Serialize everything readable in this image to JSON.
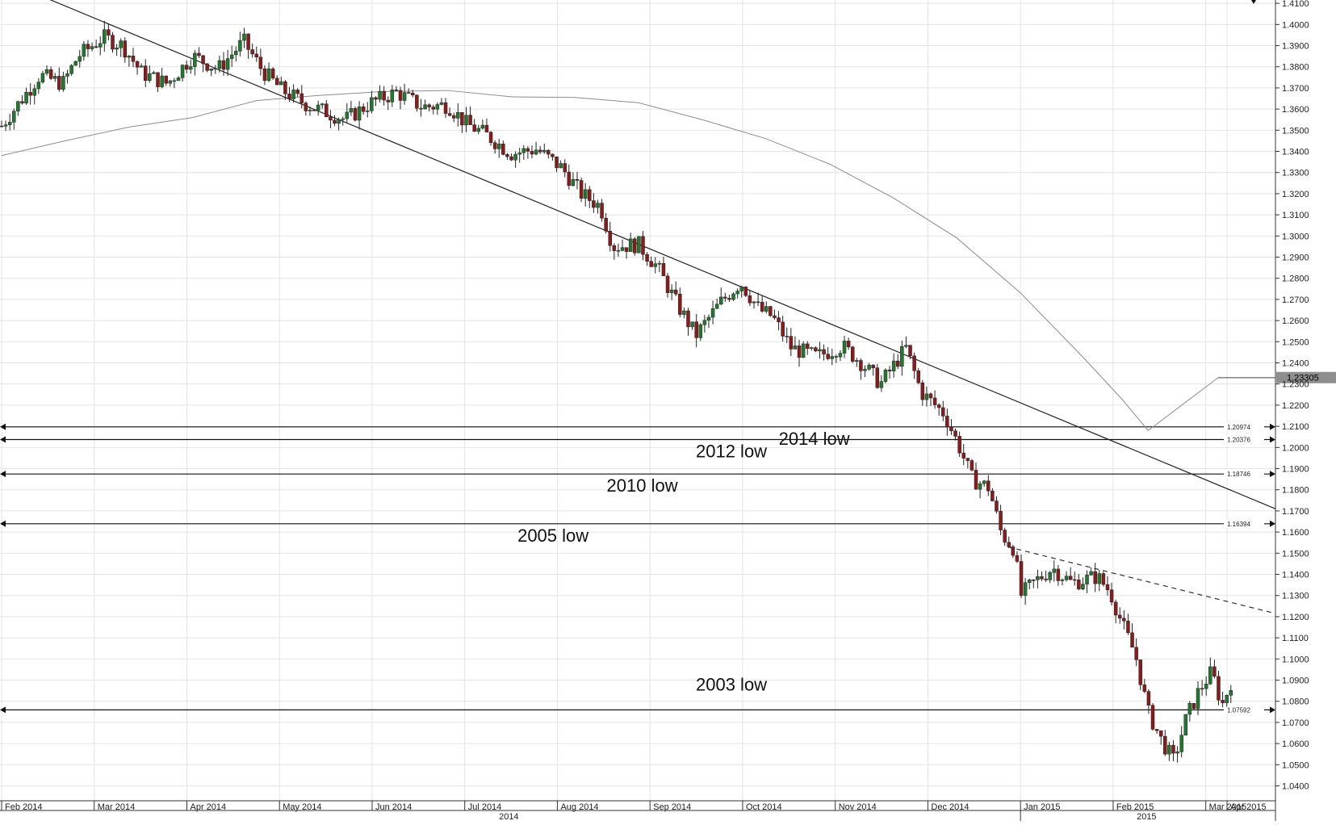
{
  "chart_data": {
    "type": "candlestick",
    "y_axis": {
      "position": "right",
      "ticks": [
        "1.4100",
        "1.4000",
        "1.3900",
        "1.3800",
        "1.3700",
        "1.3600",
        "1.3500",
        "1.3400",
        "1.3300",
        "1.3200",
        "1.3100",
        "1.3000",
        "1.2900",
        "1.2800",
        "1.2700",
        "1.2600",
        "1.2500",
        "1.2400",
        "1.2300",
        "1.2200",
        "1.2100",
        "1.2000",
        "1.1900",
        "1.1800",
        "1.1700",
        "1.1600",
        "1.1500",
        "1.1400",
        "1.1300",
        "1.1200",
        "1.1100",
        "1.1000",
        "1.0900",
        "1.0800",
        "1.0700",
        "1.0600",
        "1.0500",
        "1.0400"
      ],
      "ylim": [
        1.036,
        1.4115
      ]
    },
    "x_axis": {
      "months": [
        "Feb 2014",
        "Mar 2014",
        "Apr 2014",
        "May 2014",
        "Jun 2014",
        "Jul 2014",
        "Aug 2014",
        "Sep 2014",
        "Oct 2014",
        "Nov 2014",
        "Dec 2014",
        "Jan 2015",
        "Feb 2015",
        "Mar 2015",
        "Apr 2015"
      ],
      "years": [
        "2014",
        "2015"
      ]
    },
    "horizontal_levels": [
      {
        "value": 1.20974,
        "label": "1.20974",
        "annotation": "2014 low"
      },
      {
        "value": 1.20376,
        "label": "1.20376",
        "annotation": "2012 low"
      },
      {
        "value": 1.18746,
        "label": "1.18746",
        "annotation": "2010 low"
      },
      {
        "value": 1.16394,
        "label": "1.16394",
        "annotation": "2005 low"
      },
      {
        "value": 1.07592,
        "label": "1.07592",
        "annotation": "2003 low"
      }
    ],
    "current_price": "1.23305",
    "moving_average": [
      {
        "x": 0,
        "y": 1.338
      },
      {
        "x": 0.05,
        "y": 1.345
      },
      {
        "x": 0.1,
        "y": 1.3515
      },
      {
        "x": 0.15,
        "y": 1.356
      },
      {
        "x": 0.2,
        "y": 1.364
      },
      {
        "x": 0.25,
        "y": 1.3665
      },
      {
        "x": 0.3,
        "y": 1.3683
      },
      {
        "x": 0.35,
        "y": 1.3688
      },
      {
        "x": 0.4,
        "y": 1.3658
      },
      {
        "x": 0.45,
        "y": 1.3655
      },
      {
        "x": 0.5,
        "y": 1.363
      },
      {
        "x": 0.55,
        "y": 1.355
      },
      {
        "x": 0.6,
        "y": 1.346
      },
      {
        "x": 0.65,
        "y": 1.334
      },
      {
        "x": 0.7,
        "y": 1.318
      },
      {
        "x": 0.75,
        "y": 1.299
      },
      {
        "x": 0.8,
        "y": 1.273
      },
      {
        "x": 0.85,
        "y": 1.242
      },
      {
        "x": 0.88,
        "y": 1.2225
      },
      {
        "x": 0.9,
        "y": 1.208
      },
      {
        "x": 0.955,
        "y": 1.233
      }
    ],
    "trendline_main": {
      "from": [
        -0.005,
        1.4225
      ],
      "to": [
        1.0,
        1.171
      ]
    },
    "trendline_dashed": {
      "from": [
        0.79,
        1.153
      ],
      "to": [
        1.0,
        1.1215
      ]
    },
    "price_path": [
      {
        "x": 0.0,
        "y": 1.352
      },
      {
        "x": 0.02,
        "y": 1.368
      },
      {
        "x": 0.03,
        "y": 1.376
      },
      {
        "x": 0.048,
        "y": 1.372
      },
      {
        "x": 0.06,
        "y": 1.385
      },
      {
        "x": 0.08,
        "y": 1.394
      },
      {
        "x": 0.095,
        "y": 1.39
      },
      {
        "x": 0.11,
        "y": 1.377
      },
      {
        "x": 0.13,
        "y": 1.372
      },
      {
        "x": 0.15,
        "y": 1.385
      },
      {
        "x": 0.17,
        "y": 1.379
      },
      {
        "x": 0.19,
        "y": 1.392
      },
      {
        "x": 0.205,
        "y": 1.378
      },
      {
        "x": 0.22,
        "y": 1.369
      },
      {
        "x": 0.24,
        "y": 1.362
      },
      {
        "x": 0.27,
        "y": 1.355
      },
      {
        "x": 0.29,
        "y": 1.363
      },
      {
        "x": 0.31,
        "y": 1.368
      },
      {
        "x": 0.33,
        "y": 1.361
      },
      {
        "x": 0.35,
        "y": 1.362
      },
      {
        "x": 0.365,
        "y": 1.353
      },
      {
        "x": 0.38,
        "y": 1.348
      },
      {
        "x": 0.4,
        "y": 1.339
      },
      {
        "x": 0.42,
        "y": 1.341
      },
      {
        "x": 0.44,
        "y": 1.332
      },
      {
        "x": 0.455,
        "y": 1.32
      },
      {
        "x": 0.47,
        "y": 1.314
      },
      {
        "x": 0.48,
        "y": 1.295
      },
      {
        "x": 0.5,
        "y": 1.296
      },
      {
        "x": 0.515,
        "y": 1.285
      },
      {
        "x": 0.53,
        "y": 1.268
      },
      {
        "x": 0.545,
        "y": 1.253
      },
      {
        "x": 0.565,
        "y": 1.269
      },
      {
        "x": 0.58,
        "y": 1.278
      },
      {
        "x": 0.595,
        "y": 1.265
      },
      {
        "x": 0.605,
        "y": 1.262
      },
      {
        "x": 0.62,
        "y": 1.247
      },
      {
        "x": 0.64,
        "y": 1.243
      },
      {
        "x": 0.66,
        "y": 1.248
      },
      {
        "x": 0.675,
        "y": 1.24
      },
      {
        "x": 0.69,
        "y": 1.23
      },
      {
        "x": 0.71,
        "y": 1.247
      },
      {
        "x": 0.722,
        "y": 1.226
      },
      {
        "x": 0.74,
        "y": 1.216
      },
      {
        "x": 0.752,
        "y": 1.2
      },
      {
        "x": 0.762,
        "y": 1.185
      },
      {
        "x": 0.775,
        "y": 1.181
      },
      {
        "x": 0.785,
        "y": 1.159
      },
      {
        "x": 0.795,
        "y": 1.152
      },
      {
        "x": 0.8,
        "y": 1.13
      },
      {
        "x": 0.81,
        "y": 1.136
      },
      {
        "x": 0.825,
        "y": 1.143
      },
      {
        "x": 0.84,
        "y": 1.136
      },
      {
        "x": 0.86,
        "y": 1.139
      },
      {
        "x": 0.87,
        "y": 1.132
      },
      {
        "x": 0.88,
        "y": 1.116
      },
      {
        "x": 0.89,
        "y": 1.102
      },
      {
        "x": 0.9,
        "y": 1.075
      },
      {
        "x": 0.91,
        "y": 1.062
      },
      {
        "x": 0.92,
        "y": 1.052
      },
      {
        "x": 0.93,
        "y": 1.072
      },
      {
        "x": 0.94,
        "y": 1.085
      },
      {
        "x": 0.95,
        "y": 1.094
      },
      {
        "x": 0.958,
        "y": 1.078
      },
      {
        "x": 0.965,
        "y": 1.089
      }
    ]
  }
}
